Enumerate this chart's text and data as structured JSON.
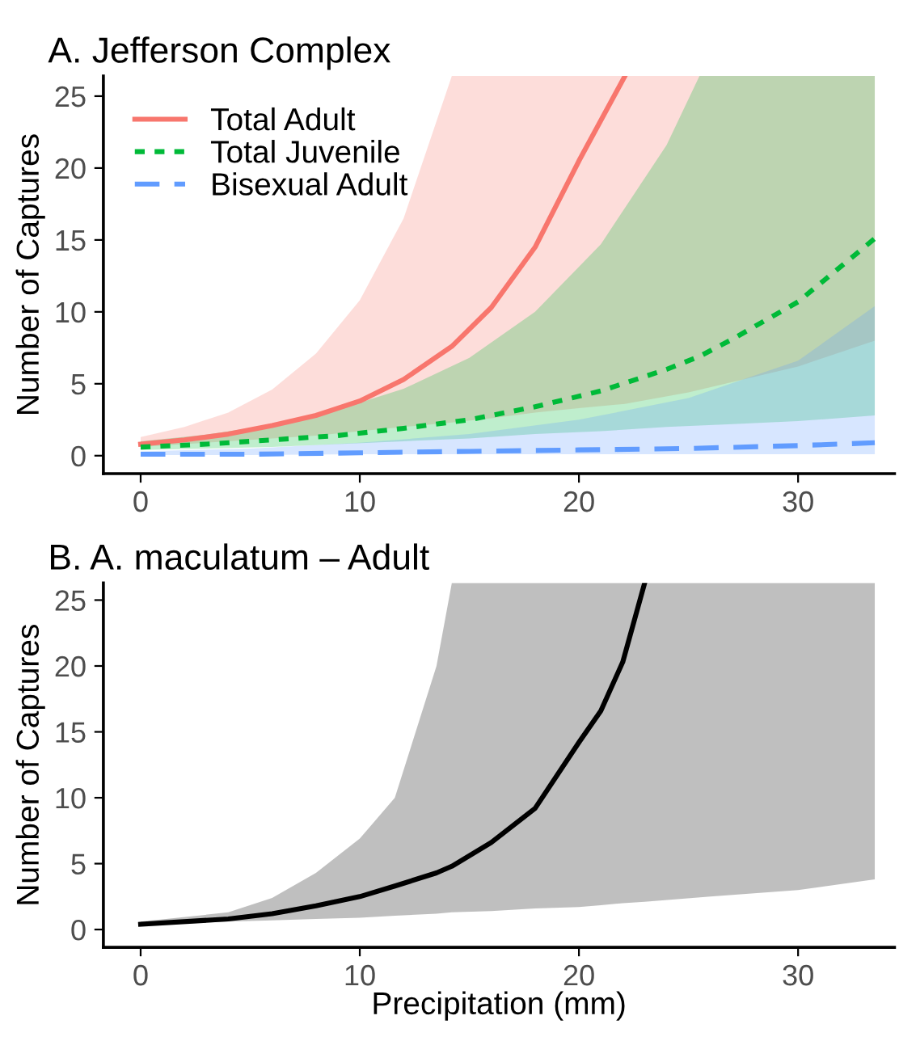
{
  "chart_data": [
    {
      "type": "line",
      "title": "A. Jefferson Complex",
      "ylabel": "Number of Captures",
      "xlim": [
        -1.7,
        34.4
      ],
      "ylim": [
        -1.25,
        26.4
      ],
      "xticks": [
        0,
        10,
        20,
        30
      ],
      "yticks": [
        0,
        5,
        10,
        15,
        20,
        25
      ],
      "grid": false,
      "legend": "top left",
      "series": [
        {
          "name": "Total Adult",
          "color": "#f8766d",
          "line_style": "solid",
          "x": [
            0,
            2,
            4,
            6,
            8,
            10,
            12,
            14.2,
            16,
            18,
            20,
            22.1,
            25,
            30,
            33.5
          ],
          "values": [
            0.8,
            1.1,
            1.5,
            2.1,
            2.8,
            3.8,
            5.3,
            7.6,
            10.3,
            14.5,
            20.5,
            26.4,
            null,
            null,
            null
          ],
          "upper": [
            1.3,
            2.0,
            3.0,
            4.6,
            7.1,
            10.8,
            16.5,
            26.4,
            26.4,
            26.4,
            26.4,
            26.4,
            26.4,
            26.4,
            26.4
          ],
          "lower": [
            0.6,
            0.8,
            1.0,
            1.2,
            1.4,
            1.7,
            2.0,
            2.3,
            2.6,
            3.0,
            3.3,
            3.6,
            4.4,
            6.2,
            8.0
          ]
        },
        {
          "name": "Total Juvenile",
          "color": "#00ba38",
          "line_style": "dotted",
          "x": [
            0,
            3,
            6,
            9,
            12,
            15,
            18,
            21,
            24,
            25.5,
            27,
            30,
            33.5
          ],
          "values": [
            0.6,
            0.8,
            1.1,
            1.4,
            1.9,
            2.5,
            3.4,
            4.5,
            6.0,
            6.9,
            8.1,
            10.7,
            15.1
          ],
          "upper": [
            1.0,
            1.47,
            2.15,
            3.2,
            4.65,
            6.8,
            10.0,
            14.7,
            21.6,
            26.4,
            26.4,
            26.4,
            26.4
          ],
          "lower": [
            0.4,
            0.5,
            0.6,
            0.8,
            1.0,
            1.2,
            1.5,
            1.7,
            2.0,
            2.1,
            2.2,
            2.4,
            2.8
          ]
        },
        {
          "name": "Bisexual Adult",
          "color": "#619cff",
          "line_style": "dashed",
          "x": [
            0,
            5,
            10,
            15,
            20,
            25,
            30,
            33.5
          ],
          "values": [
            0.1,
            0.1,
            0.2,
            0.3,
            0.4,
            0.5,
            0.7,
            0.9
          ],
          "upper": [
            0.3,
            0.5,
            0.9,
            1.5,
            2.5,
            4.0,
            6.6,
            10.4
          ],
          "lower": [
            0.05,
            0.05,
            0.1,
            0.1,
            0.1,
            0.1,
            0.1,
            0.1
          ]
        }
      ]
    },
    {
      "type": "line",
      "title": "B. A. maculatum – Adult",
      "xlabel": "Precipitation (mm)",
      "ylabel": "Number of Captures",
      "xlim": [
        -1.7,
        34.4
      ],
      "ylim": [
        -1.35,
        26.3
      ],
      "xticks": [
        0,
        10,
        20,
        30
      ],
      "yticks": [
        0,
        5,
        10,
        15,
        20,
        25
      ],
      "grid": false,
      "series": [
        {
          "color": "#000000",
          "line_style": "solid",
          "x": [
            0,
            4,
            6,
            8,
            10,
            11.6,
            13.5,
            14.2,
            16,
            18,
            20,
            21,
            22,
            23,
            26,
            30,
            33.5
          ],
          "values": [
            0.4,
            0.8,
            1.2,
            1.8,
            2.5,
            3.3,
            4.3,
            4.8,
            6.6,
            9.2,
            14.2,
            16.6,
            20.3,
            26.3,
            null,
            null,
            null
          ],
          "upper": [
            0.6,
            1.3,
            2.4,
            4.3,
            6.9,
            10,
            20,
            26.3,
            26.3,
            26.3,
            26.3,
            26.3,
            26.3,
            26.3,
            26.3,
            26.3,
            26.3
          ],
          "lower": [
            0.3,
            0.6,
            0.7,
            0.8,
            0.9,
            1.05,
            1.2,
            1.3,
            1.4,
            1.6,
            1.7,
            1.85,
            2.0,
            2.1,
            2.5,
            3.0,
            3.8
          ]
        }
      ]
    }
  ]
}
